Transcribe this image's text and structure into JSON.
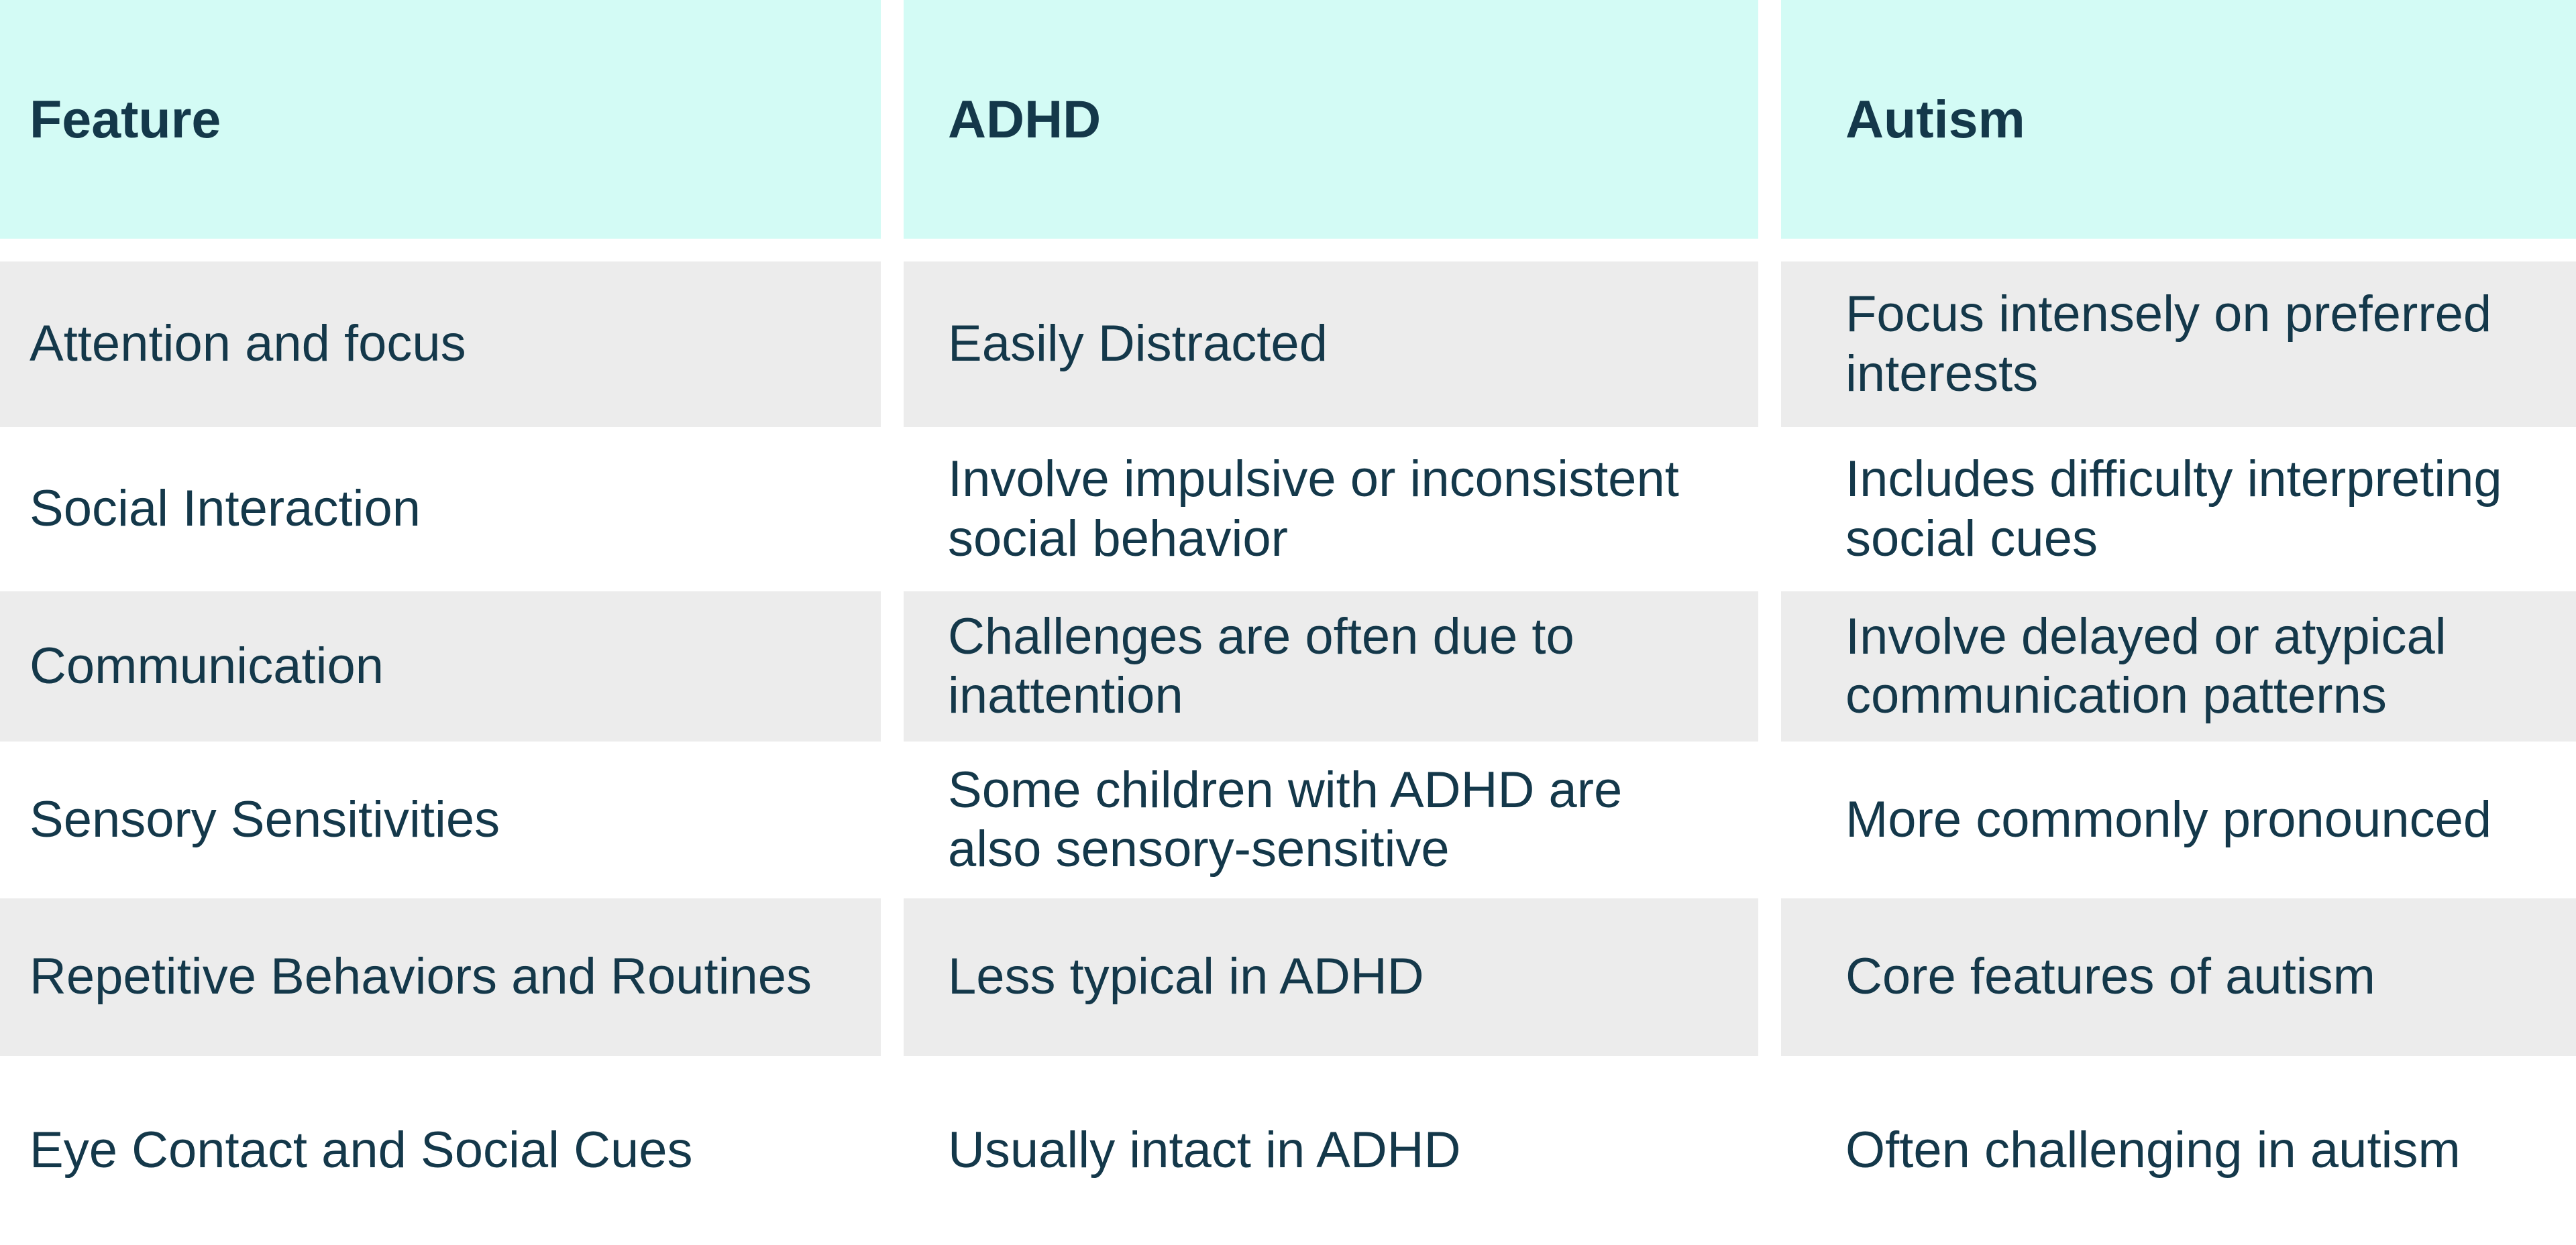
{
  "colors": {
    "header_bg": "#d3fbf5",
    "alt_row_bg": "#ececec",
    "row_bg": "#ffffff",
    "text": "#14384a",
    "page_bg": "#ffffff"
  },
  "table": {
    "columns": [
      {
        "label": "Feature"
      },
      {
        "label": "ADHD"
      },
      {
        "label": "Autism"
      }
    ],
    "rows": [
      {
        "feature": "Attention and focus",
        "adhd": "Easily Distracted",
        "autism": "Focus intensely on preferred interests"
      },
      {
        "feature": "Social Interaction",
        "adhd": "Involve impulsive or inconsistent social behavior",
        "autism": "Includes difficulty interpreting social cues"
      },
      {
        "feature": "Communication",
        "adhd": "Challenges are often due to inattention",
        "autism": "Involve delayed or atypical communication patterns"
      },
      {
        "feature": "Sensory Sensitivities",
        "adhd": "Some children with ADHD are also sensory-sensitive",
        "autism": "More commonly pronounced"
      },
      {
        "feature": "Repetitive Behaviors and Routines",
        "adhd": "Less typical in ADHD",
        "autism": "Core features of autism"
      },
      {
        "feature": "Eye Contact and Social Cues",
        "adhd": "Usually intact in ADHD",
        "autism": "Often challenging in autism"
      }
    ]
  }
}
